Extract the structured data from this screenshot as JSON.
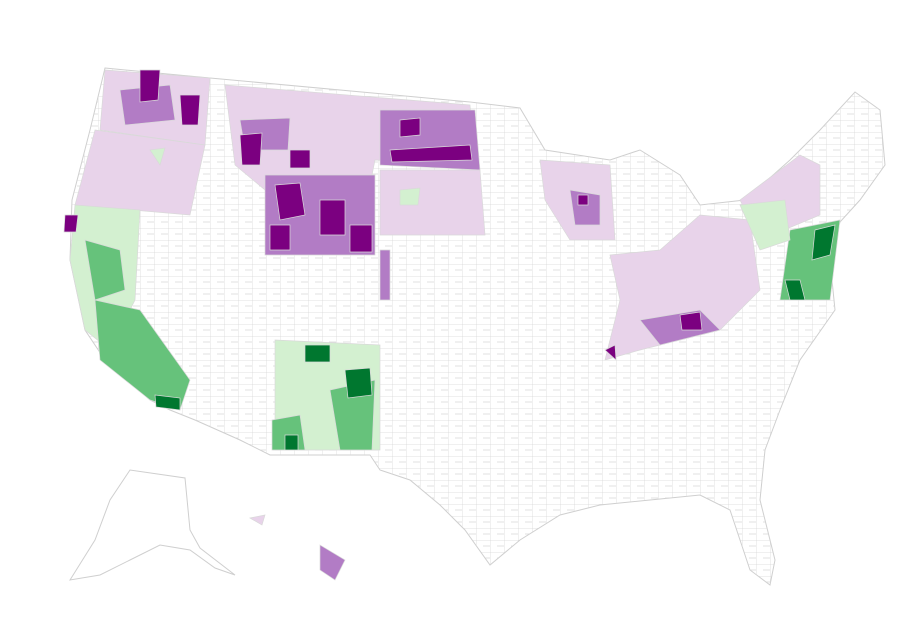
{
  "map": {
    "palette": [
      "#7b0080",
      "#b27cc5",
      "#e8d3ea",
      "#d3f0d0",
      "#66c27b",
      "#00772f"
    ]
  }
}
